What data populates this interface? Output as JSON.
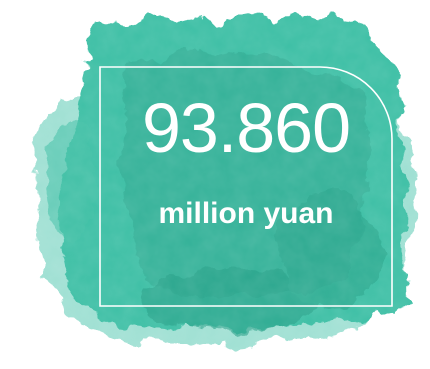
{
  "stat": {
    "value": "93.860",
    "unit": "million yuan"
  },
  "colors": {
    "watercolor_dark": "#2ea890",
    "watercolor_mid": "#3dbfa5",
    "watercolor_light": "#7fd6c4",
    "frame": "#ffffff",
    "text": "#ffffff"
  }
}
